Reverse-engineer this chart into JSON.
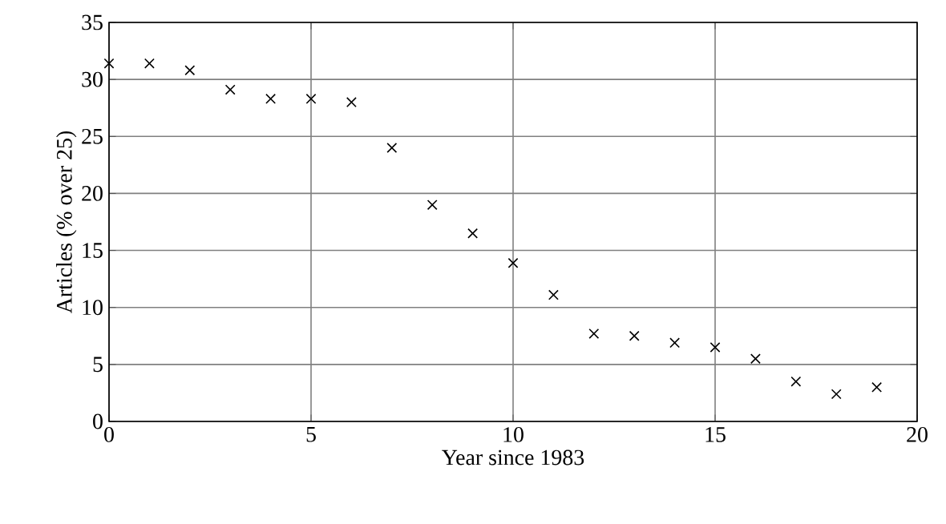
{
  "chart_data": {
    "type": "scatter",
    "xlabel": "Year since 1983",
    "ylabel": "Articles (% over 25)",
    "x": [
      0,
      1,
      2,
      3,
      4,
      5,
      6,
      7,
      8,
      9,
      10,
      11,
      12,
      13,
      14,
      15,
      16,
      17,
      18,
      19
    ],
    "values": [
      31.4,
      31.4,
      30.8,
      29.1,
      28.3,
      28.3,
      28.0,
      24.0,
      19.0,
      16.5,
      13.9,
      11.1,
      7.7,
      7.5,
      6.9,
      6.5,
      5.5,
      3.5,
      2.4,
      3.0
    ],
    "color": "#000000",
    "marker": "cross",
    "grid": true,
    "xlim": [
      0,
      20
    ],
    "ylim": [
      0,
      35
    ],
    "xticks": [
      0,
      5,
      10,
      15,
      20
    ],
    "yticks": [
      0,
      5,
      10,
      15,
      20,
      25,
      30,
      35
    ]
  }
}
